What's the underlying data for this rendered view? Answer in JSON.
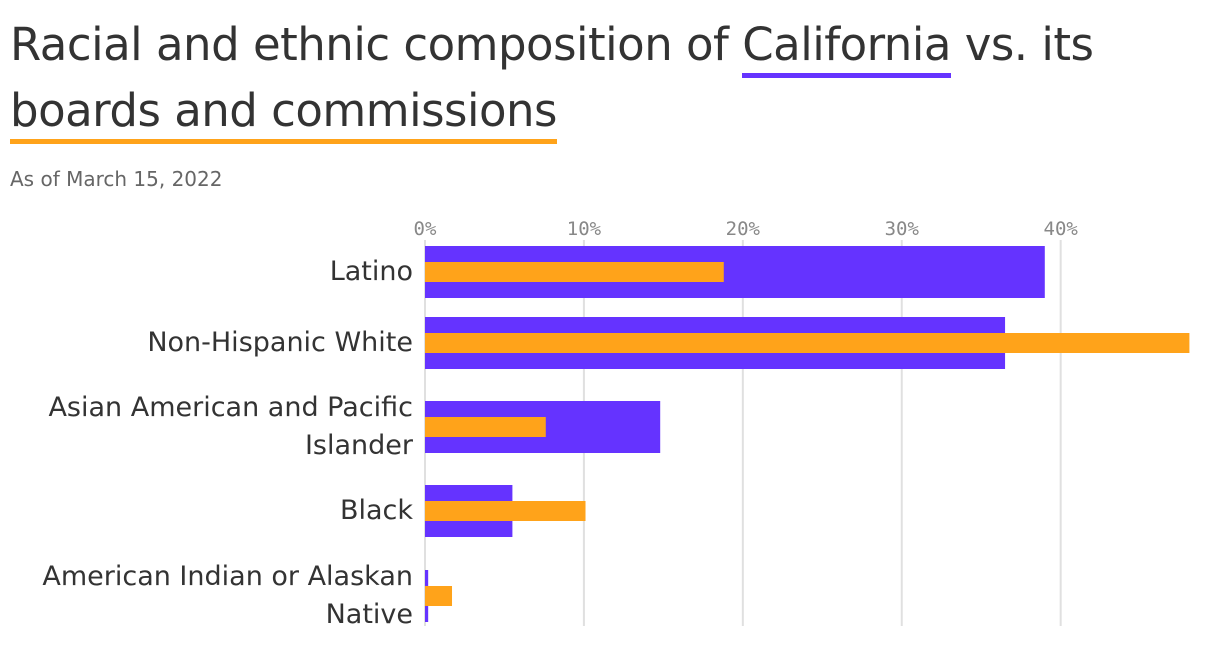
{
  "chart_data": {
    "type": "bar",
    "orientation": "horizontal",
    "title_start": "Racial and ethnic composition of",
    "title_middle": "vs. its",
    "subtitle": "As of March 15, 2022",
    "categories": [
      "Latino",
      "Non-Hispanic White",
      "Asian American and Pacific Islander",
      "Black",
      "American Indian or Alaskan Native"
    ],
    "series": [
      {
        "name": "California",
        "color": "#6533ff",
        "values": [
          39,
          36.5,
          14.8,
          5.5,
          0.2
        ]
      },
      {
        "name": "boards and commissions",
        "color": "#ffa31a",
        "values": [
          18.8,
          48.1,
          7.6,
          10.1,
          1.7
        ]
      }
    ],
    "xlim": [
      0,
      48.2
    ],
    "xticks": [
      {
        "value": 0,
        "label": "0%"
      },
      {
        "value": 10,
        "label": "10%"
      },
      {
        "value": 20,
        "label": "20%"
      },
      {
        "value": 30,
        "label": "30%"
      },
      {
        "value": 40,
        "label": "40%"
      }
    ],
    "grid": true
  }
}
